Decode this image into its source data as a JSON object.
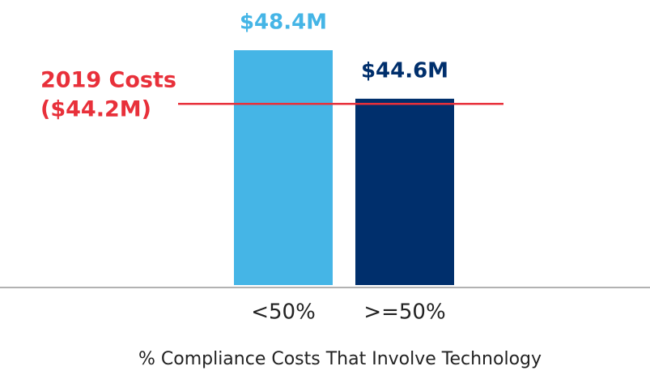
{
  "chart_data": {
    "type": "bar",
    "x_label": "% Compliance Costs That Involve Technology",
    "categories": [
      "<50%",
      ">=50%"
    ],
    "values": [
      48.4,
      44.6
    ],
    "value_labels": [
      "$48.4M",
      "$44.6M"
    ],
    "colors": [
      "#45b5e6",
      "#002f6c"
    ],
    "ylim": [
      30,
      50
    ],
    "reference_line": {
      "value": 44.2,
      "label": [
        "2019 Costs",
        "($44.2M)"
      ],
      "color": "#e8303a"
    }
  }
}
